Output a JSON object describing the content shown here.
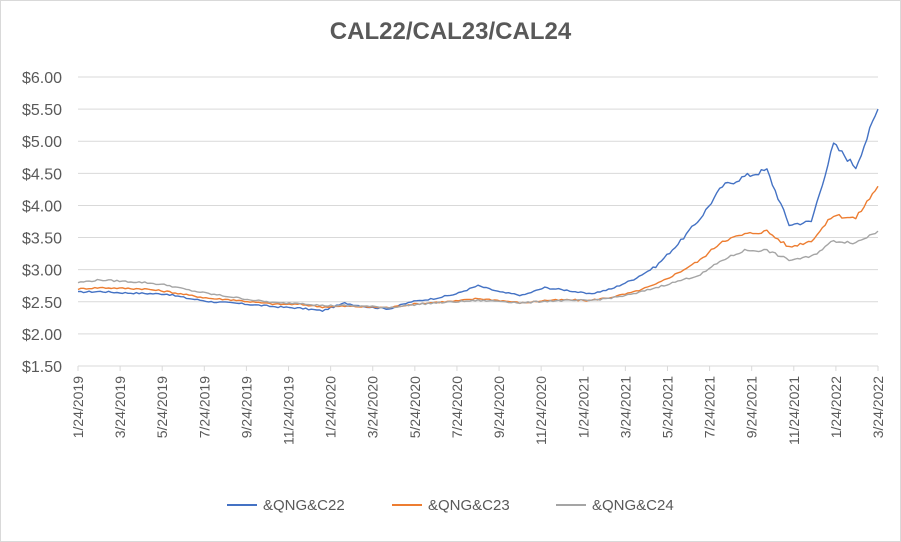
{
  "chart_data": {
    "type": "line",
    "title": "CAL22/CAL23/CAL24",
    "xlabel": "",
    "ylabel": "",
    "ylim": [
      1.5,
      6.0
    ],
    "y_ticks": [
      "$1.50",
      "$2.00",
      "$2.50",
      "$3.00",
      "$3.50",
      "$4.00",
      "$4.50",
      "$5.00",
      "$5.50",
      "$6.00"
    ],
    "x_tick_labels": [
      "1/24/2019",
      "3/24/2019",
      "5/24/2019",
      "7/24/2019",
      "9/24/2019",
      "11/24/2019",
      "1/24/2020",
      "3/24/2020",
      "5/24/2020",
      "7/24/2020",
      "9/24/2020",
      "11/24/2020",
      "1/24/2021",
      "3/24/2021",
      "5/24/2021",
      "7/24/2021",
      "9/24/2021",
      "11/24/2021",
      "1/24/2022",
      "3/24/2022"
    ],
    "grid": true,
    "legend_position": "bottom",
    "colors": [
      "#4472c4",
      "#ed7d31",
      "#a5a5a5"
    ],
    "series": [
      {
        "name": "&QNG&C22",
        "values": [
          2.65,
          2.66,
          2.64,
          2.63,
          2.62,
          2.55,
          2.5,
          2.48,
          2.45,
          2.42,
          2.4,
          2.36,
          2.48,
          2.42,
          2.39,
          2.5,
          2.55,
          2.62,
          2.75,
          2.65,
          2.6,
          2.72,
          2.68,
          2.62,
          2.7,
          2.85,
          3.05,
          3.4,
          3.8,
          4.3,
          4.45,
          4.55,
          3.7,
          3.75,
          4.95,
          4.6,
          5.5
        ]
      },
      {
        "name": "&QNG&C23",
        "values": [
          2.7,
          2.72,
          2.71,
          2.7,
          2.66,
          2.6,
          2.55,
          2.53,
          2.49,
          2.46,
          2.46,
          2.42,
          2.43,
          2.42,
          2.41,
          2.46,
          2.49,
          2.51,
          2.55,
          2.52,
          2.48,
          2.52,
          2.53,
          2.52,
          2.57,
          2.65,
          2.77,
          2.95,
          3.15,
          3.45,
          3.55,
          3.6,
          3.35,
          3.45,
          3.85,
          3.8,
          4.3
        ]
      },
      {
        "name": "&QNG&C24",
        "values": [
          2.8,
          2.84,
          2.82,
          2.8,
          2.76,
          2.68,
          2.62,
          2.57,
          2.52,
          2.48,
          2.48,
          2.44,
          2.44,
          2.43,
          2.41,
          2.45,
          2.48,
          2.5,
          2.52,
          2.51,
          2.48,
          2.51,
          2.52,
          2.52,
          2.56,
          2.62,
          2.72,
          2.82,
          2.92,
          3.15,
          3.3,
          3.3,
          3.15,
          3.2,
          3.45,
          3.42,
          3.6
        ]
      }
    ]
  }
}
